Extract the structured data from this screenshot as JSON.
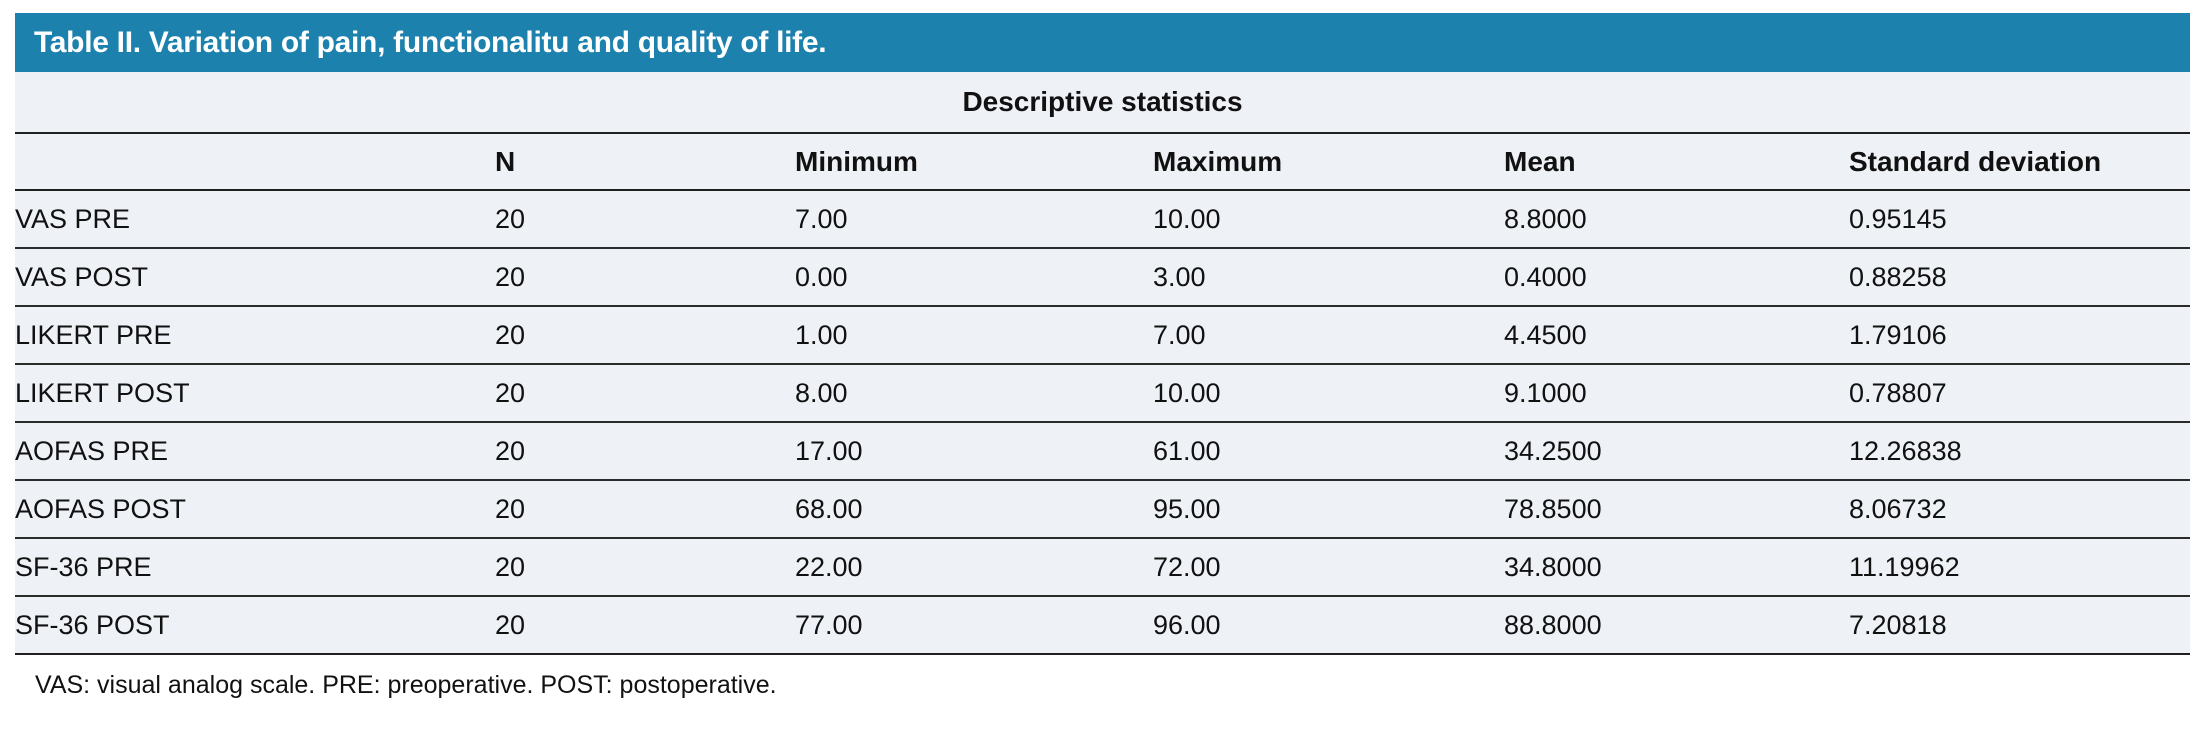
{
  "colors": {
    "accent": "#1c81ad",
    "table_row_bg": "#eef1f6",
    "title_text": "#ffffff",
    "rule_line": "#1f1f1f"
  },
  "table": {
    "title": "Table II. Variation of pain, functionalitu and quality of life.",
    "span_header": "Descriptive statistics",
    "columns": [
      "",
      "N",
      "Minimum",
      "Maximum",
      "Mean",
      "Standard deviation"
    ],
    "rows": [
      {
        "label": "VAS PRE",
        "n": "20",
        "min": "7.00",
        "max": "10.00",
        "mean": "8.8000",
        "sd": "0.95145"
      },
      {
        "label": "VAS POST",
        "n": "20",
        "min": "0.00",
        "max": "3.00",
        "mean": "0.4000",
        "sd": "0.88258"
      },
      {
        "label": "LIKERT PRE",
        "n": "20",
        "min": "1.00",
        "max": "7.00",
        "mean": "4.4500",
        "sd": "1.79106"
      },
      {
        "label": "LIKERT POST",
        "n": "20",
        "min": "8.00",
        "max": "10.00",
        "mean": "9.1000",
        "sd": "0.78807"
      },
      {
        "label": "AOFAS PRE",
        "n": "20",
        "min": "17.00",
        "max": "61.00",
        "mean": "34.2500",
        "sd": "12.26838"
      },
      {
        "label": "AOFAS POST",
        "n": "20",
        "min": "68.00",
        "max": "95.00",
        "mean": "78.8500",
        "sd": "8.06732"
      },
      {
        "label": "SF-36 PRE",
        "n": "20",
        "min": "22.00",
        "max": "72.00",
        "mean": "34.8000",
        "sd": "11.19962"
      },
      {
        "label": "SF-36 POST",
        "n": "20",
        "min": "77.00",
        "max": "96.00",
        "mean": "88.8000",
        "sd": "7.20818"
      }
    ],
    "footnote": "VAS: visual analog scale. PRE: preoperative. POST: postoperative."
  }
}
